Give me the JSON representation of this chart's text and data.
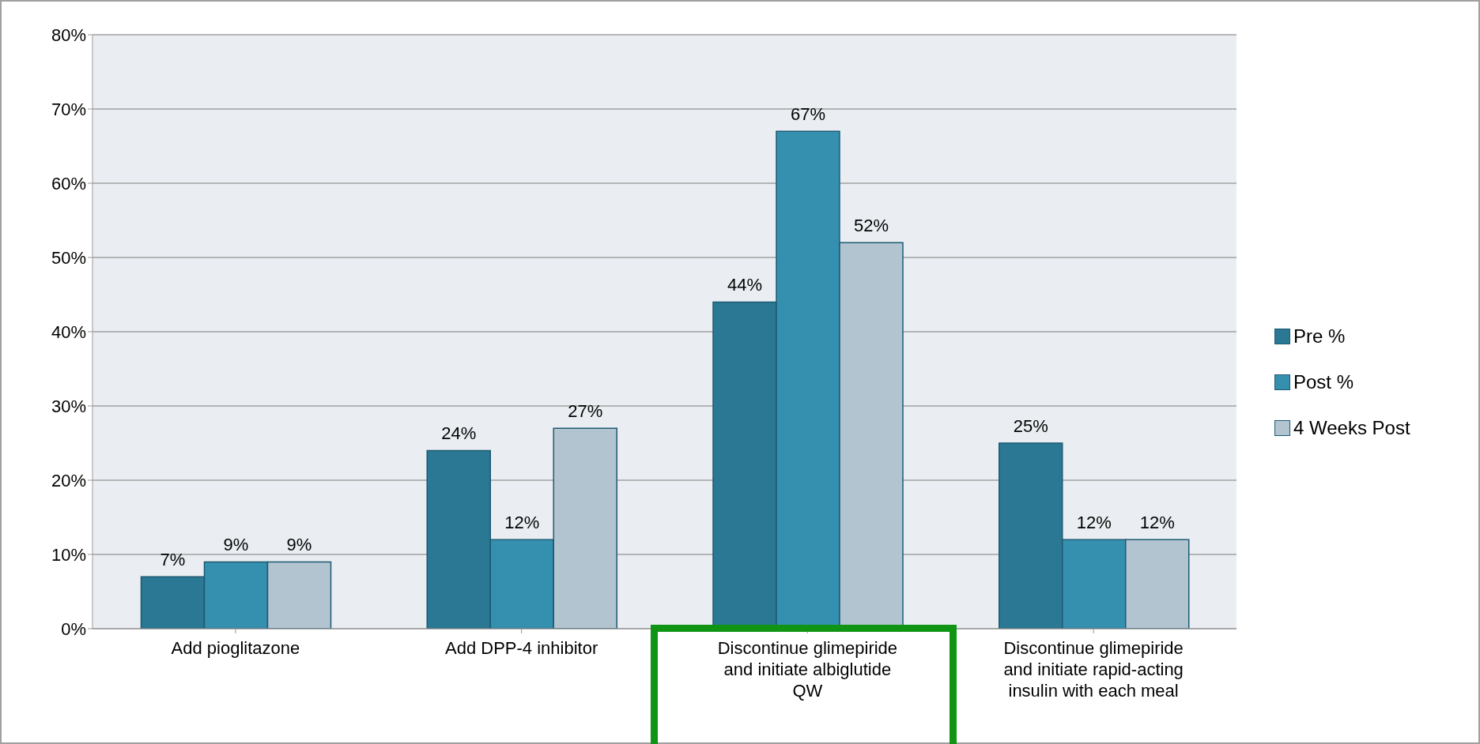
{
  "chart_data": {
    "type": "bar",
    "categories": [
      "Add pioglitazone",
      "Add DPP-4 inhibitor",
      "Discontinue glimepiride and initiate albiglutide QW",
      "Discontinue glimepiride and initiate rapid-acting insulin with each meal"
    ],
    "series": [
      {
        "name": "Pre %",
        "color": "#2a7893",
        "values": [
          7,
          24,
          44,
          25
        ],
        "value_labels": [
          "7%",
          "24%",
          "44%",
          "25%"
        ]
      },
      {
        "name": "Post %",
        "color": "#3590b0",
        "values": [
          9,
          12,
          67,
          12
        ],
        "value_labels": [
          "9%",
          "12%",
          "67%",
          "12%"
        ]
      },
      {
        "name": "4 Weeks Post",
        "color": "#b3c4d1",
        "values": [
          9,
          27,
          52,
          12
        ],
        "value_labels": [
          "9%",
          "27%",
          "52%",
          "12%"
        ]
      }
    ],
    "ylim": [
      0,
      80
    ],
    "yticks": [
      {
        "value": 0,
        "label": "0%"
      },
      {
        "value": 10,
        "label": "10%"
      },
      {
        "value": 20,
        "label": "20%"
      },
      {
        "value": 30,
        "label": "30%"
      },
      {
        "value": 40,
        "label": "40%"
      },
      {
        "value": 50,
        "label": "50%"
      },
      {
        "value": 60,
        "label": "60%"
      },
      {
        "value": 70,
        "label": "70%"
      },
      {
        "value": 80,
        "label": "80%"
      }
    ],
    "grid": "y",
    "legend": "right"
  }
}
